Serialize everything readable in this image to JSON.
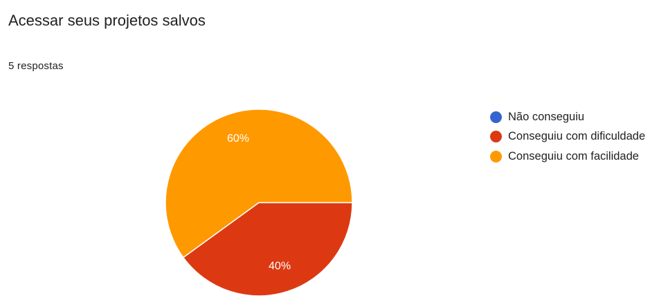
{
  "question": {
    "title": "Acessar seus projetos salvos",
    "response_count": "5 respostas"
  },
  "chart_data": {
    "type": "pie",
    "title": "Acessar seus projetos salvos",
    "total_responses": 5,
    "slices": [
      {
        "label": "Não conseguiu",
        "value": 0,
        "percent": 0,
        "percent_label": "",
        "color": "#3366cc"
      },
      {
        "label": "Conseguiu com dificuldade",
        "value": 2,
        "percent": 40,
        "percent_label": "40%",
        "color": "#dc3912"
      },
      {
        "label": "Conseguiu com facilidade",
        "value": 3,
        "percent": 60,
        "percent_label": "60%",
        "color": "#ff9900"
      }
    ],
    "legend_position": "right",
    "start_angle": "3 o'clock, clockwise"
  }
}
